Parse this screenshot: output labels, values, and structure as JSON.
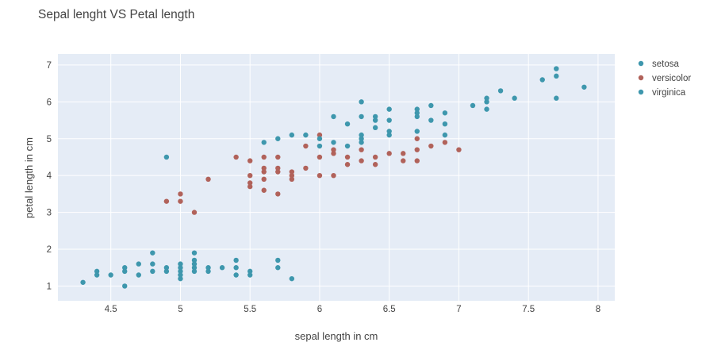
{
  "chart_data": {
    "type": "scatter",
    "title": "Sepal lenght VS Petal length",
    "xlabel": "sepal length in cm",
    "ylabel": "petal length in cm",
    "xlim": [
      4.12,
      8.12
    ],
    "ylim": [
      0.6,
      7.3
    ],
    "xticks": [
      4.5,
      5,
      5.5,
      6,
      6.5,
      7,
      7.5,
      8
    ],
    "xtick_labels": [
      "4.5",
      "5",
      "5.5",
      "6",
      "6.5",
      "7",
      "7.5",
      "8"
    ],
    "yticks": [
      1,
      2,
      3,
      4,
      5,
      6,
      7
    ],
    "ytick_labels": [
      "1",
      "2",
      "3",
      "4",
      "5",
      "6",
      "7"
    ],
    "grid": true,
    "legend_position": "top-right",
    "plot_background": "#e5ecf6",
    "grid_color": "#ffffff",
    "series": [
      {
        "name": "setosa",
        "color": "#3e97ad",
        "points": [
          [
            4.3,
            1.1
          ],
          [
            4.4,
            1.3
          ],
          [
            4.4,
            1.4
          ],
          [
            4.5,
            1.3
          ],
          [
            4.6,
            1.0
          ],
          [
            4.6,
            1.4
          ],
          [
            4.6,
            1.5
          ],
          [
            4.7,
            1.3
          ],
          [
            4.7,
            1.6
          ],
          [
            4.8,
            1.4
          ],
          [
            4.8,
            1.6
          ],
          [
            4.8,
            1.9
          ],
          [
            4.9,
            1.4
          ],
          [
            4.9,
            1.5
          ],
          [
            5.0,
            1.2
          ],
          [
            5.0,
            1.3
          ],
          [
            5.0,
            1.4
          ],
          [
            5.0,
            1.5
          ],
          [
            5.0,
            1.6
          ],
          [
            5.1,
            1.4
          ],
          [
            5.1,
            1.5
          ],
          [
            5.1,
            1.6
          ],
          [
            5.1,
            1.7
          ],
          [
            5.1,
            1.9
          ],
          [
            5.2,
            1.4
          ],
          [
            5.2,
            1.5
          ],
          [
            5.3,
            1.5
          ],
          [
            5.4,
            1.3
          ],
          [
            5.4,
            1.5
          ],
          [
            5.4,
            1.7
          ],
          [
            5.5,
            1.3
          ],
          [
            5.5,
            1.4
          ],
          [
            5.7,
            1.5
          ],
          [
            5.7,
            1.7
          ],
          [
            5.8,
            1.2
          ]
        ]
      },
      {
        "name": "versicolor",
        "color": "#b1625a",
        "points": [
          [
            4.9,
            3.3
          ],
          [
            5.0,
            3.3
          ],
          [
            5.0,
            3.5
          ],
          [
            5.1,
            3.0
          ],
          [
            5.2,
            3.9
          ],
          [
            5.4,
            4.5
          ],
          [
            5.5,
            3.7
          ],
          [
            5.5,
            3.8
          ],
          [
            5.5,
            4.0
          ],
          [
            5.5,
            4.4
          ],
          [
            5.6,
            3.6
          ],
          [
            5.6,
            3.9
          ],
          [
            5.6,
            4.1
          ],
          [
            5.6,
            4.2
          ],
          [
            5.6,
            4.5
          ],
          [
            5.7,
            3.5
          ],
          [
            5.7,
            4.1
          ],
          [
            5.7,
            4.2
          ],
          [
            5.7,
            4.5
          ],
          [
            5.8,
            3.9
          ],
          [
            5.8,
            4.0
          ],
          [
            5.8,
            4.1
          ],
          [
            5.9,
            4.2
          ],
          [
            5.9,
            4.8
          ],
          [
            6.0,
            4.0
          ],
          [
            6.0,
            4.5
          ],
          [
            6.0,
            5.1
          ],
          [
            6.1,
            4.0
          ],
          [
            6.1,
            4.6
          ],
          [
            6.1,
            4.7
          ],
          [
            6.2,
            4.3
          ],
          [
            6.2,
            4.5
          ],
          [
            6.3,
            4.4
          ],
          [
            6.3,
            4.7
          ],
          [
            6.4,
            4.3
          ],
          [
            6.4,
            4.5
          ],
          [
            6.5,
            4.6
          ],
          [
            6.6,
            4.4
          ],
          [
            6.6,
            4.6
          ],
          [
            6.7,
            4.4
          ],
          [
            6.7,
            4.7
          ],
          [
            6.7,
            5.0
          ],
          [
            6.8,
            4.8
          ],
          [
            6.9,
            4.9
          ],
          [
            7.0,
            4.7
          ]
        ]
      },
      {
        "name": "virginica",
        "color": "#3e97ad",
        "points": [
          [
            4.9,
            4.5
          ],
          [
            5.6,
            4.9
          ],
          [
            5.7,
            5.0
          ],
          [
            5.8,
            5.1
          ],
          [
            5.9,
            5.1
          ],
          [
            6.0,
            4.8
          ],
          [
            6.0,
            5.0
          ],
          [
            6.1,
            4.9
          ],
          [
            6.1,
            5.6
          ],
          [
            6.2,
            4.8
          ],
          [
            6.2,
            5.4
          ],
          [
            6.3,
            4.9
          ],
          [
            6.3,
            5.0
          ],
          [
            6.3,
            5.1
          ],
          [
            6.3,
            5.6
          ],
          [
            6.3,
            6.0
          ],
          [
            6.4,
            5.3
          ],
          [
            6.4,
            5.5
          ],
          [
            6.4,
            5.6
          ],
          [
            6.5,
            5.1
          ],
          [
            6.5,
            5.2
          ],
          [
            6.5,
            5.5
          ],
          [
            6.5,
            5.8
          ],
          [
            6.7,
            5.2
          ],
          [
            6.7,
            5.6
          ],
          [
            6.7,
            5.7
          ],
          [
            6.7,
            5.8
          ],
          [
            6.8,
            5.5
          ],
          [
            6.8,
            5.9
          ],
          [
            6.9,
            5.1
          ],
          [
            6.9,
            5.4
          ],
          [
            6.9,
            5.7
          ],
          [
            7.1,
            5.9
          ],
          [
            7.2,
            5.8
          ],
          [
            7.2,
            6.0
          ],
          [
            7.2,
            6.1
          ],
          [
            7.3,
            6.3
          ],
          [
            7.4,
            6.1
          ],
          [
            7.6,
            6.6
          ],
          [
            7.7,
            6.1
          ],
          [
            7.7,
            6.7
          ],
          [
            7.7,
            6.9
          ],
          [
            7.9,
            6.4
          ]
        ]
      }
    ]
  }
}
